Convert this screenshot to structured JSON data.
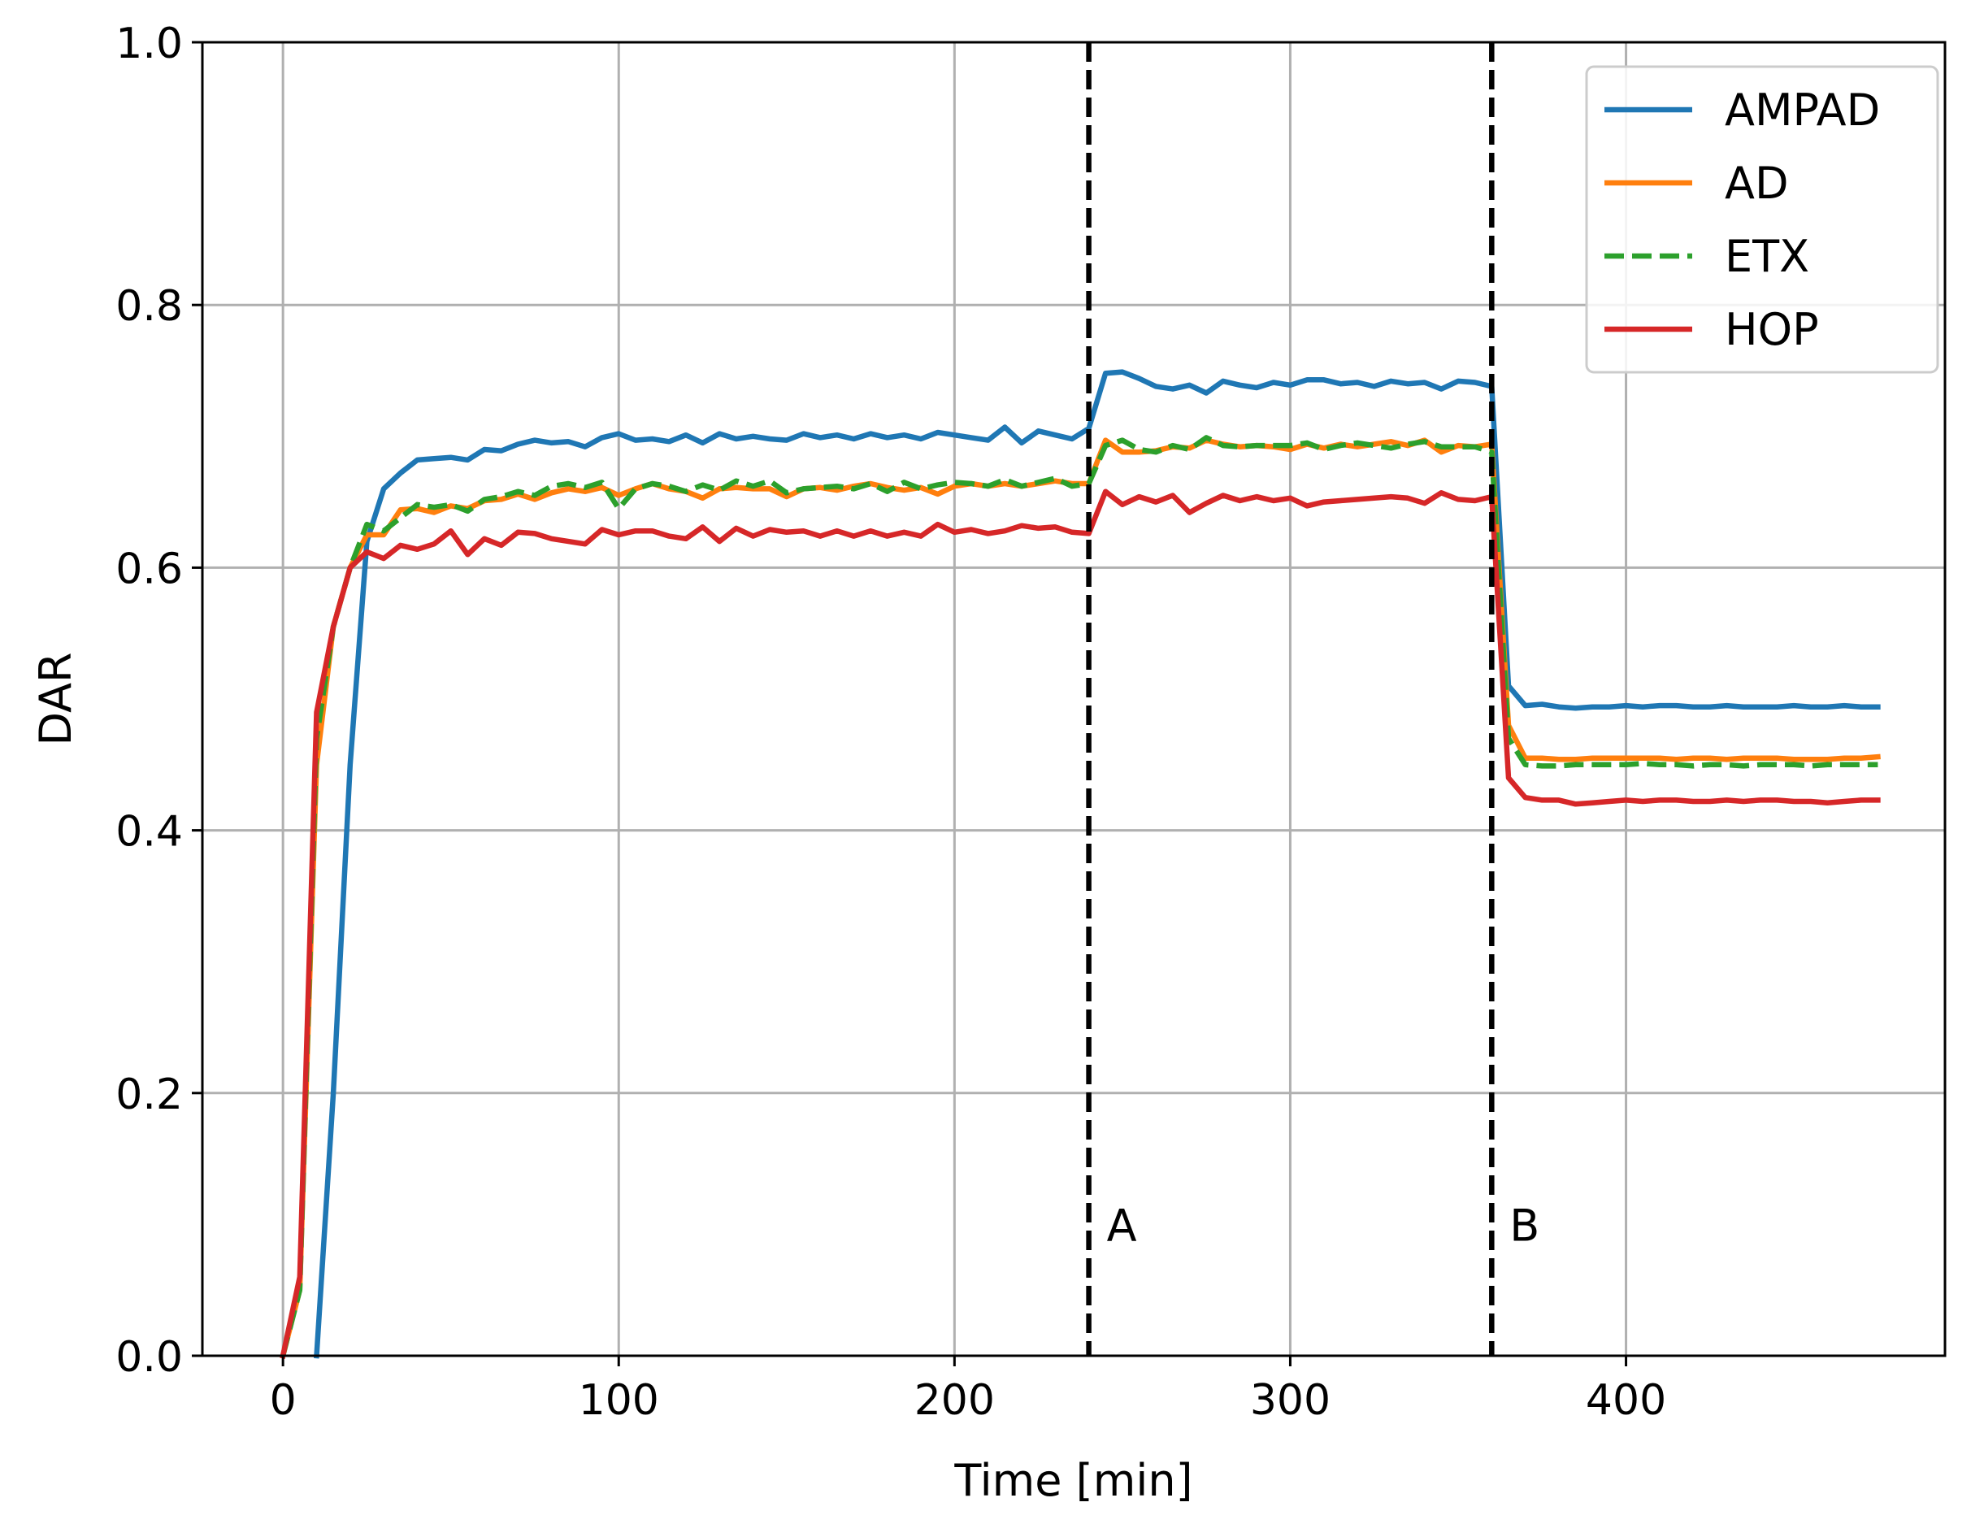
{
  "chart_data": {
    "type": "line",
    "title": "",
    "xlabel": "Time [min]",
    "ylabel": "DAR",
    "xlim": [
      -24,
      495
    ],
    "ylim": [
      0.0,
      1.0
    ],
    "xticks": [
      "0",
      "100",
      "200",
      "300",
      "400"
    ],
    "yticks": [
      "0.0",
      "0.2",
      "0.4",
      "0.6",
      "0.8",
      "1.0"
    ],
    "grid": true,
    "legend_position": "top-right",
    "vlines": [
      {
        "x": 240,
        "label": "A"
      },
      {
        "x": 360,
        "label": "B"
      }
    ],
    "x": [
      0,
      5,
      10,
      15,
      20,
      25,
      30,
      35,
      40,
      45,
      50,
      55,
      60,
      65,
      70,
      75,
      80,
      85,
      90,
      95,
      100,
      105,
      110,
      115,
      120,
      125,
      130,
      135,
      140,
      145,
      150,
      155,
      160,
      165,
      170,
      175,
      180,
      185,
      190,
      195,
      200,
      205,
      210,
      215,
      220,
      225,
      230,
      235,
      240,
      245,
      250,
      255,
      260,
      265,
      270,
      275,
      280,
      285,
      290,
      295,
      300,
      305,
      310,
      315,
      320,
      325,
      330,
      335,
      340,
      345,
      350,
      355,
      360,
      365,
      370,
      375,
      380,
      385,
      390,
      395,
      400,
      405,
      410,
      415,
      420,
      425,
      430,
      435,
      440,
      445,
      450,
      455,
      460,
      465,
      470,
      475
    ],
    "series": [
      {
        "name": "AMPAD",
        "color": "#1f77b4",
        "style": "solid",
        "values": [
          null,
          null,
          0.0,
          0.2,
          0.45,
          0.62,
          0.66,
          0.672,
          0.682,
          0.683,
          0.684,
          0.682,
          0.69,
          0.689,
          0.694,
          0.697,
          0.695,
          0.696,
          0.692,
          0.699,
          0.702,
          0.697,
          0.698,
          0.696,
          0.701,
          0.695,
          0.702,
          0.698,
          0.7,
          0.698,
          0.697,
          0.702,
          0.699,
          0.701,
          0.698,
          0.702,
          0.699,
          0.701,
          0.698,
          0.703,
          0.701,
          0.699,
          0.697,
          0.707,
          0.695,
          0.704,
          0.701,
          0.698,
          0.706,
          0.748,
          0.749,
          0.744,
          0.738,
          0.736,
          0.739,
          0.733,
          0.742,
          0.739,
          0.737,
          0.741,
          0.739,
          0.743,
          0.743,
          0.74,
          0.741,
          0.738,
          0.742,
          0.74,
          0.741,
          0.736,
          0.742,
          0.741,
          0.738,
          0.51,
          0.495,
          0.496,
          0.494,
          0.493,
          0.494,
          0.494,
          0.495,
          0.494,
          0.495,
          0.495,
          0.494,
          0.494,
          0.495,
          0.494,
          0.494,
          0.494,
          0.495,
          0.494,
          0.494,
          0.495,
          0.494,
          0.494
        ]
      },
      {
        "name": "AD",
        "color": "#ff7f0e",
        "style": "solid",
        "values": [
          0.0,
          0.05,
          0.45,
          0.555,
          0.6,
          0.625,
          0.625,
          0.644,
          0.645,
          0.642,
          0.647,
          0.645,
          0.651,
          0.652,
          0.656,
          0.652,
          0.657,
          0.66,
          0.658,
          0.661,
          0.655,
          0.66,
          0.664,
          0.66,
          0.658,
          0.653,
          0.66,
          0.661,
          0.66,
          0.66,
          0.654,
          0.66,
          0.661,
          0.659,
          0.662,
          0.664,
          0.661,
          0.659,
          0.661,
          0.656,
          0.662,
          0.664,
          0.662,
          0.664,
          0.662,
          0.664,
          0.666,
          0.664,
          0.664,
          0.697,
          0.688,
          0.688,
          0.689,
          0.692,
          0.691,
          0.697,
          0.694,
          0.692,
          0.693,
          0.692,
          0.69,
          0.694,
          0.691,
          0.694,
          0.692,
          0.694,
          0.696,
          0.693,
          0.697,
          0.688,
          0.693,
          0.692,
          0.694,
          0.48,
          0.455,
          0.455,
          0.454,
          0.454,
          0.455,
          0.455,
          0.455,
          0.455,
          0.455,
          0.454,
          0.455,
          0.455,
          0.454,
          0.455,
          0.455,
          0.455,
          0.454,
          0.454,
          0.454,
          0.455,
          0.455,
          0.456
        ]
      },
      {
        "name": "ETX",
        "color": "#2ca02c",
        "style": "dashed",
        "values": [
          0.0,
          0.05,
          0.47,
          0.555,
          0.6,
          0.633,
          0.628,
          0.638,
          0.648,
          0.646,
          0.648,
          0.643,
          0.652,
          0.654,
          0.658,
          0.655,
          0.662,
          0.664,
          0.661,
          0.665,
          0.645,
          0.66,
          0.664,
          0.662,
          0.658,
          0.663,
          0.659,
          0.666,
          0.662,
          0.666,
          0.657,
          0.66,
          0.661,
          0.662,
          0.66,
          0.664,
          0.658,
          0.665,
          0.66,
          0.663,
          0.665,
          0.664,
          0.662,
          0.667,
          0.662,
          0.665,
          0.668,
          0.662,
          0.664,
          0.693,
          0.697,
          0.69,
          0.688,
          0.693,
          0.69,
          0.699,
          0.693,
          0.692,
          0.693,
          0.693,
          0.693,
          0.695,
          0.69,
          0.693,
          0.695,
          0.693,
          0.691,
          0.694,
          0.696,
          0.692,
          0.692,
          0.692,
          0.688,
          0.47,
          0.45,
          0.449,
          0.449,
          0.45,
          0.45,
          0.45,
          0.45,
          0.451,
          0.45,
          0.45,
          0.449,
          0.45,
          0.45,
          0.449,
          0.45,
          0.45,
          0.45,
          0.449,
          0.45,
          0.45,
          0.45,
          0.45
        ]
      },
      {
        "name": "HOP",
        "color": "#d62728",
        "style": "solid",
        "values": [
          0.0,
          0.06,
          0.49,
          0.555,
          0.6,
          0.612,
          0.607,
          0.617,
          0.614,
          0.618,
          0.628,
          0.61,
          0.622,
          0.617,
          0.627,
          0.626,
          0.622,
          0.62,
          0.618,
          0.629,
          0.625,
          0.628,
          0.628,
          0.624,
          0.622,
          0.631,
          0.62,
          0.63,
          0.624,
          0.629,
          0.627,
          0.628,
          0.624,
          0.628,
          0.624,
          0.628,
          0.624,
          0.627,
          0.624,
          0.633,
          0.627,
          0.629,
          0.626,
          0.628,
          0.632,
          0.63,
          0.631,
          0.627,
          0.626,
          0.658,
          0.648,
          0.654,
          0.65,
          0.655,
          0.642,
          0.649,
          0.655,
          0.651,
          0.654,
          0.651,
          0.653,
          0.647,
          0.65,
          0.651,
          0.652,
          0.653,
          0.654,
          0.653,
          0.649,
          0.657,
          0.652,
          0.651,
          0.654,
          0.44,
          0.425,
          0.423,
          0.423,
          0.42,
          0.421,
          0.422,
          0.423,
          0.422,
          0.423,
          0.423,
          0.422,
          0.422,
          0.423,
          0.422,
          0.423,
          0.423,
          0.422,
          0.422,
          0.421,
          0.422,
          0.423,
          0.423
        ]
      }
    ]
  }
}
